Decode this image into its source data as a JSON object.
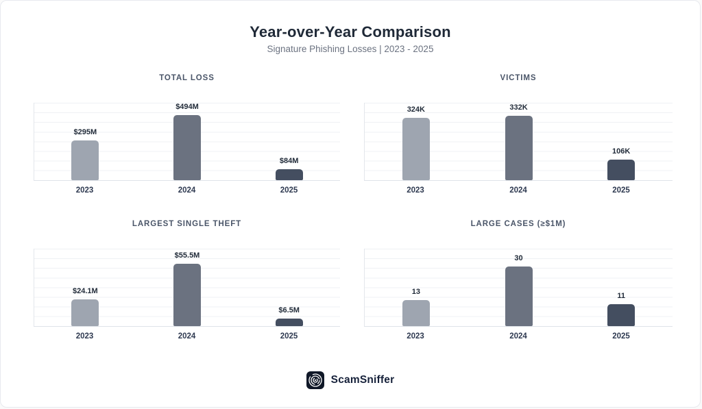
{
  "page": {
    "title": "Year-over-Year Comparison",
    "subtitle": "Signature Phishing Losses | 2023 - 2025",
    "brand": "ScamSniffer"
  },
  "colors": {
    "bar_2023": "#9ea5b0",
    "bar_2024": "#6b7280",
    "bar_2025": "#444e60",
    "title_text": "#1f2937",
    "subtitle_text": "#6b7280",
    "chart_title_text": "#4a5568",
    "gridline": "#eff1f4",
    "logo_background": "#101828"
  },
  "chart_data": [
    {
      "type": "bar",
      "title": "TOTAL LOSS",
      "categories": [
        "2023",
        "2024",
        "2025"
      ],
      "values": [
        295,
        494,
        84
      ],
      "value_labels": [
        "$295M",
        "$494M",
        "$84M"
      ],
      "unit": "USD millions",
      "ylim": [
        0,
        575
      ],
      "grid": true,
      "legend": "none"
    },
    {
      "type": "bar",
      "title": "VICTIMS",
      "categories": [
        "2023",
        "2024",
        "2025"
      ],
      "values": [
        324,
        332,
        106
      ],
      "value_labels": [
        "324K",
        "332K",
        "106K"
      ],
      "unit": "thousands of victims",
      "ylim": [
        0,
        400
      ],
      "grid": true,
      "legend": "none"
    },
    {
      "type": "bar",
      "title": "LARGEST SINGLE THEFT",
      "categories": [
        "2023",
        "2024",
        "2025"
      ],
      "values": [
        24.1,
        55.5,
        6.5
      ],
      "value_labels": [
        "$24.1M",
        "$55.5M",
        "$6.5M"
      ],
      "unit": "USD millions",
      "ylim": [
        0,
        69
      ],
      "grid": true,
      "legend": "none"
    },
    {
      "type": "bar",
      "title": "LARGE CASES (≥$1M)",
      "categories": [
        "2023",
        "2024",
        "2025"
      ],
      "values": [
        13,
        30,
        11
      ],
      "value_labels": [
        "13",
        "30",
        "11"
      ],
      "unit": "cases",
      "ylim": [
        0,
        39
      ],
      "grid": true,
      "legend": "none"
    }
  ]
}
